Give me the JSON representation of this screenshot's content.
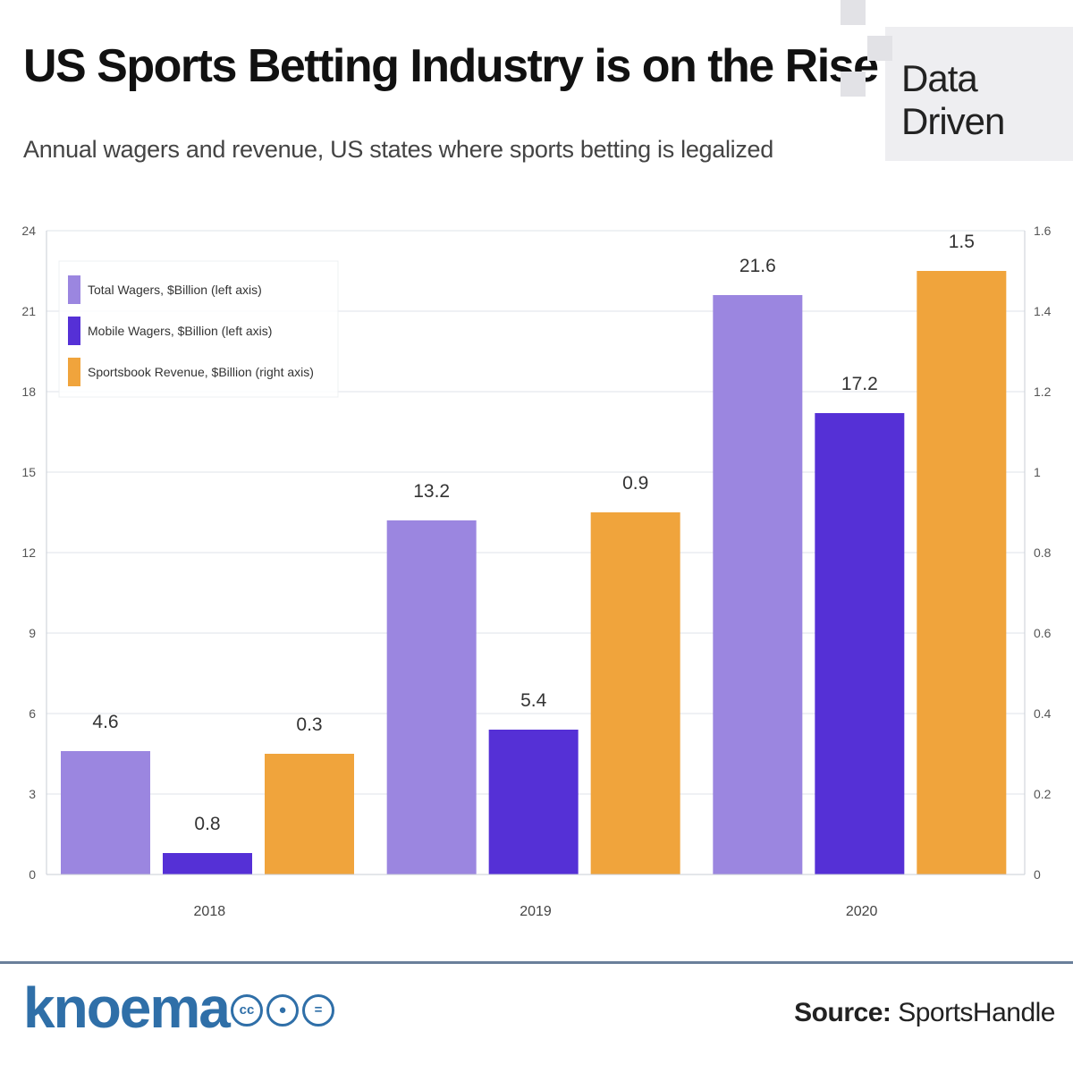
{
  "header": {
    "title": "US Sports Betting Industry is on the Rise",
    "subtitle": "Annual wagers and revenue, US states where sports betting is legalized",
    "brand": "Data Driven"
  },
  "footer": {
    "logo": "knoema",
    "license_icons": [
      "cc-icon",
      "by-icon",
      "nd-icon"
    ],
    "source_label": "Source:",
    "source_value": "SportsHandle"
  },
  "chart_data": {
    "type": "bar",
    "categories": [
      "2018",
      "2019",
      "2020"
    ],
    "series": [
      {
        "name": "Total Wagers, $Billion (left axis)",
        "axis": "left",
        "color": "#9b86e0",
        "values": [
          4.6,
          13.2,
          21.6
        ],
        "labels": [
          "4.6",
          "13.2",
          "21.6"
        ]
      },
      {
        "name": "Mobile Wagers, $Billion (left axis)",
        "axis": "left",
        "color": "#5530d6",
        "values": [
          0.8,
          5.4,
          17.2
        ],
        "labels": [
          "0.8",
          "5.4",
          "17.2"
        ]
      },
      {
        "name": "Sportsbook Revenue, $Billion (right axis)",
        "axis": "right",
        "color": "#f0a43c",
        "values": [
          0.3,
          0.9,
          1.5
        ],
        "labels": [
          "0.3",
          "0.9",
          "1.5"
        ]
      }
    ],
    "y_left": {
      "ylim": [
        0,
        24
      ],
      "ticks": [
        "0",
        "3",
        "6",
        "9",
        "12",
        "15",
        "18",
        "21",
        "24"
      ]
    },
    "y_right": {
      "ylim": [
        0,
        1.6
      ],
      "ticks": [
        "0",
        "0.2",
        "0.4",
        "0.6",
        "0.8",
        "1",
        "1.2",
        "1.4",
        "1.6"
      ]
    },
    "grid": true,
    "legend": "top-left"
  }
}
